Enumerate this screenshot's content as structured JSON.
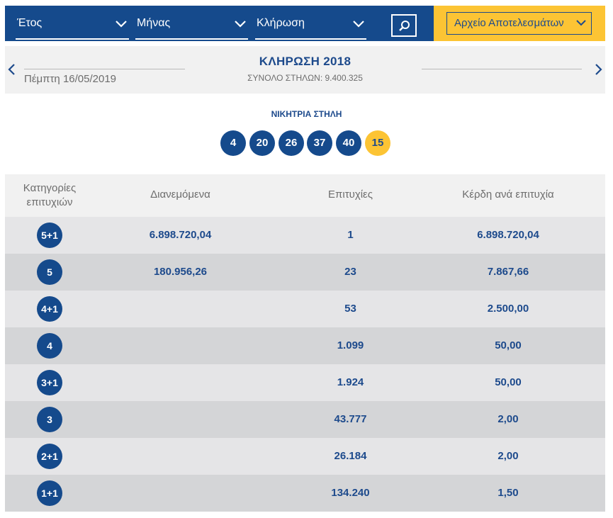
{
  "filters": {
    "year_label": "Έτος",
    "month_label": "Μήνας",
    "draw_label": "Κλήρωση",
    "archive_label": "Αρχείο Αποτελεσμάτων"
  },
  "draw": {
    "title": "ΚΛΗΡΩΣΗ 2018",
    "date": "Πέμπτη 16/05/2019",
    "total": "ΣΥΝΟΛΟ ΣΤΗΛΩΝ: 9.400.325"
  },
  "winning": {
    "title": "ΝΙΚΗΤΡΙΑ ΣΤΗΛΗ",
    "numbers": [
      "4",
      "20",
      "26",
      "37",
      "40"
    ],
    "bonus": "15"
  },
  "table": {
    "headers": {
      "category": "Κατηγορίες επιτυχιών",
      "distributed": "Διανεμόμενα",
      "winners": "Επιτυχίες",
      "prize": "Κέρδη ανά επιτυχία"
    },
    "rows": [
      {
        "category": "5+1",
        "distributed": "6.898.720,04",
        "winners": "1",
        "prize": "6.898.720,04"
      },
      {
        "category": "5",
        "distributed": "180.956,26",
        "winners": "23",
        "prize": "7.867,66"
      },
      {
        "category": "4+1",
        "distributed": "",
        "winners": "53",
        "prize": "2.500,00"
      },
      {
        "category": "4",
        "distributed": "",
        "winners": "1.099",
        "prize": "50,00"
      },
      {
        "category": "3+1",
        "distributed": "",
        "winners": "1.924",
        "prize": "50,00"
      },
      {
        "category": "3",
        "distributed": "",
        "winners": "43.777",
        "prize": "2,00"
      },
      {
        "category": "2+1",
        "distributed": "",
        "winners": "26.184",
        "prize": "2,00"
      },
      {
        "category": "1+1",
        "distributed": "",
        "winners": "134.240",
        "prize": "1,50"
      }
    ]
  },
  "colors": {
    "primary": "#154a8c",
    "accent": "#fcc434",
    "header_bg": "#f1f1f1",
    "row_light": "#e5e5e7",
    "row_dark": "#d4d5d7"
  },
  "icons": {
    "dropdown": "chevron-down-icon",
    "search": "search-icon",
    "prev": "chevron-left-icon",
    "next": "chevron-right-icon"
  }
}
